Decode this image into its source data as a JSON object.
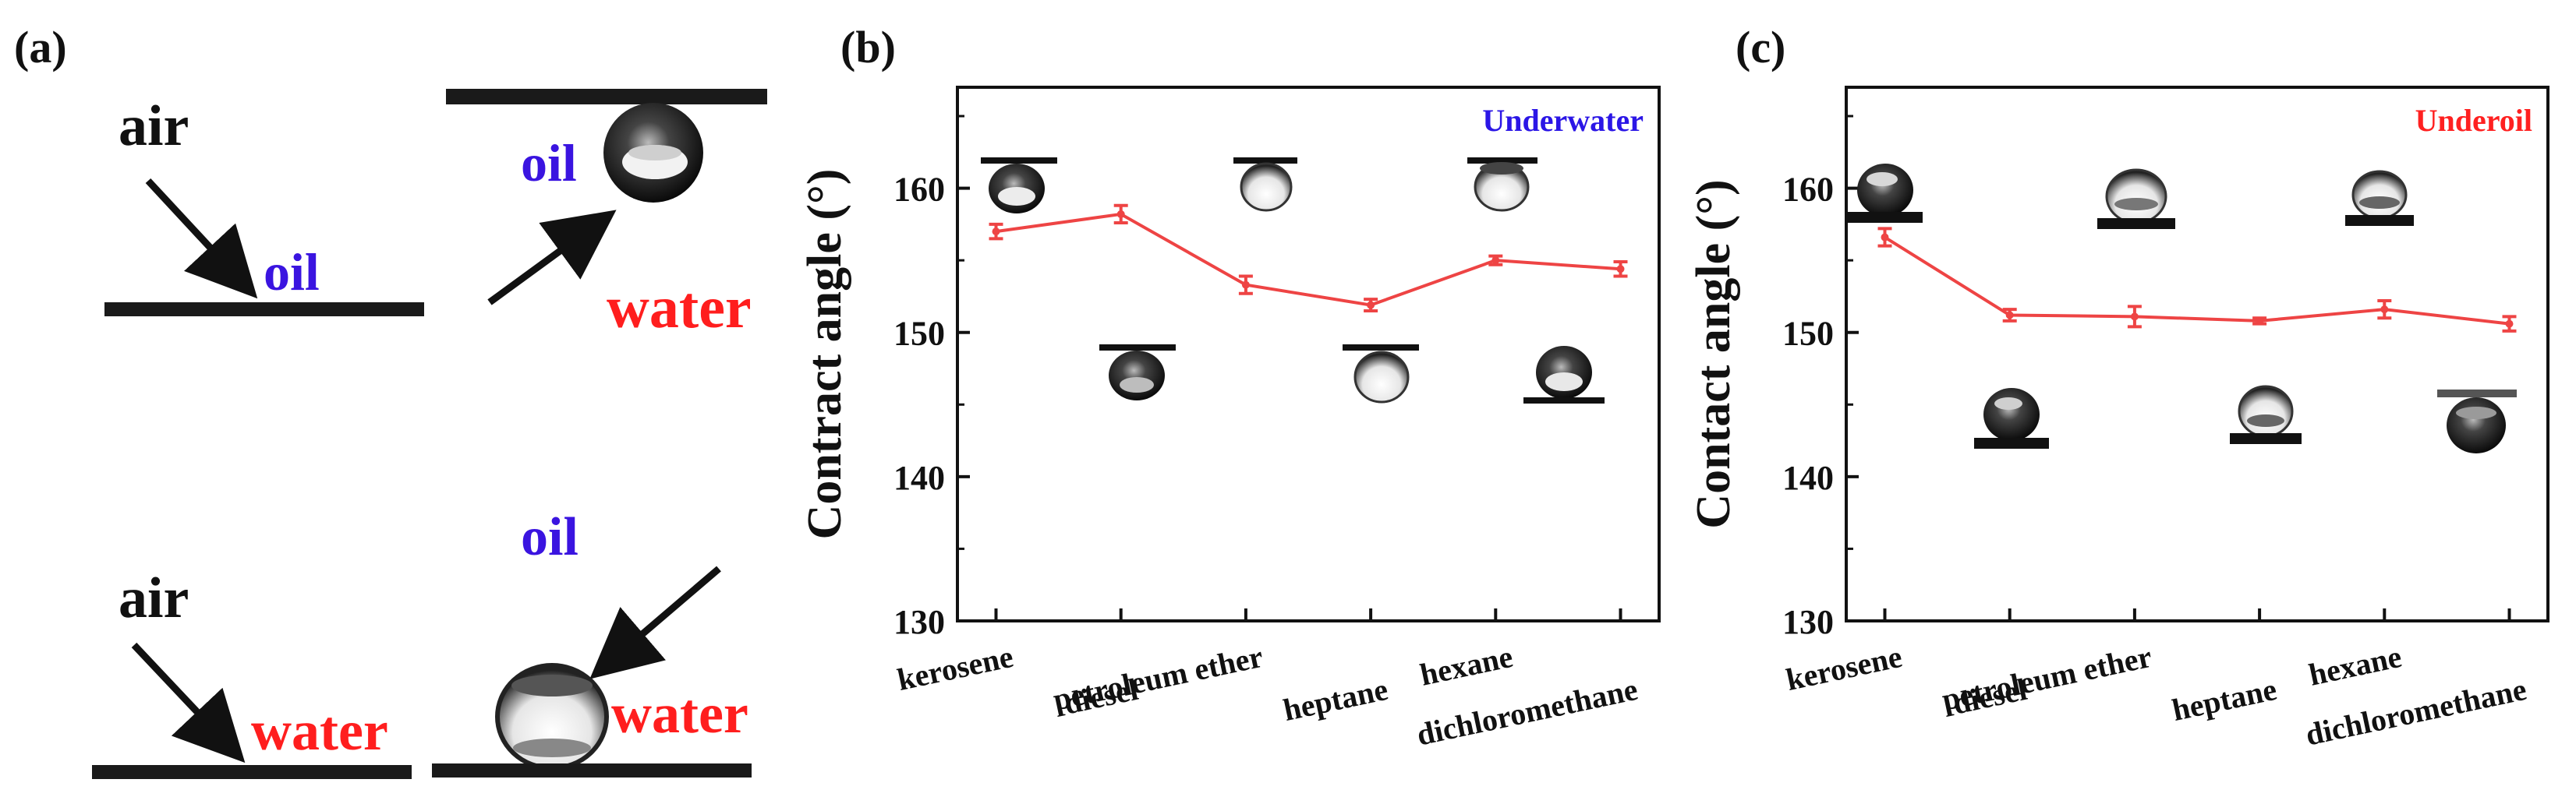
{
  "panel_a": {
    "label": "(a)",
    "top": {
      "air": "air",
      "oil_left": "oil",
      "oil_right": "oil",
      "water": "water"
    },
    "bottom": {
      "air": "air",
      "water_left": "water",
      "oil": "oil",
      "water_right": "water"
    },
    "colors": {
      "black": "#111111",
      "blue": "#3a14e0",
      "red": "#ff1e1e"
    }
  },
  "chart_data": [
    {
      "type": "line",
      "panel_label": "(b)",
      "annotation": "Underwater",
      "annotation_color": "#2b16e6",
      "ylabel": "Contract angle (°)",
      "categories": [
        "kerosene",
        "diesel",
        "petroleum ether",
        "heptane",
        "hexane",
        "dichloromethane"
      ],
      "values": [
        157.0,
        158.2,
        153.3,
        151.9,
        155.0,
        154.4
      ],
      "errors": [
        0.5,
        0.6,
        0.6,
        0.4,
        0.3,
        0.5
      ],
      "ylim": [
        130,
        167
      ],
      "yticks": [
        130,
        140,
        150,
        160
      ],
      "line_color": "#ee4444"
    },
    {
      "type": "line",
      "panel_label": "(c)",
      "annotation": "Underoil",
      "annotation_color": "#ff2020",
      "ylabel": "Contact angle (°)",
      "categories": [
        "kerosene",
        "diesel",
        "petroleum ether",
        "heptane",
        "hexane",
        "dichloromethane"
      ],
      "values": [
        156.6,
        151.2,
        151.1,
        150.8,
        151.6,
        150.6
      ],
      "errors": [
        0.6,
        0.4,
        0.7,
        0.2,
        0.6,
        0.5
      ],
      "ylim": [
        130,
        167
      ],
      "yticks": [
        130,
        140,
        150,
        160
      ],
      "line_color": "#ee4444"
    }
  ]
}
